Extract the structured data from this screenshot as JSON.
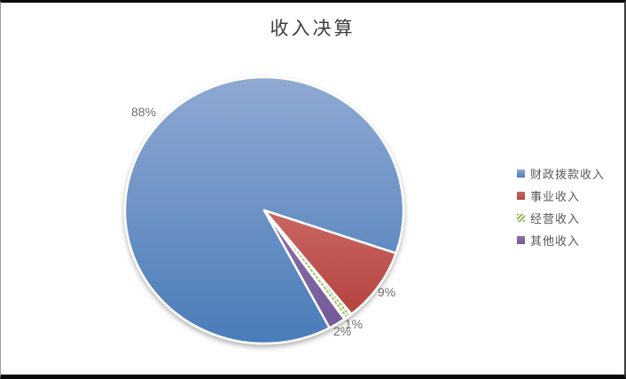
{
  "chart_data": {
    "type": "pie",
    "title": "收入决算",
    "legend_position": "right",
    "rotation_deg": 152,
    "total": 100,
    "slices": [
      {
        "label": "财政拨款收入",
        "value": 88,
        "pct_label": "88%",
        "color": "#4f81bd",
        "color_light": "#8fa9d2",
        "color_dark": "#4a7cb9",
        "pattern": "solid"
      },
      {
        "label": "事业收入",
        "value": 9,
        "pct_label": "9%",
        "color": "#c0504d",
        "color_light": "#ca6763",
        "color_dark": "#b44440",
        "pattern": "solid"
      },
      {
        "label": "经营收入",
        "value": 1,
        "pct_label": "1%",
        "color": "#9bbb59",
        "color_light": "#9bbb59",
        "color_dark": "#9bbb59",
        "pattern": "dash-hatch"
      },
      {
        "label": "其他收入",
        "value": 2,
        "pct_label": "2%",
        "color": "#8064a2",
        "color_light": "#8a6fac",
        "color_dark": "#755a98",
        "pattern": "solid"
      }
    ],
    "slice_border_color": "#ffffff",
    "label_color": "#6e6e6e",
    "title_color": "#3f3f3f",
    "legend_text_color": "#595959"
  }
}
